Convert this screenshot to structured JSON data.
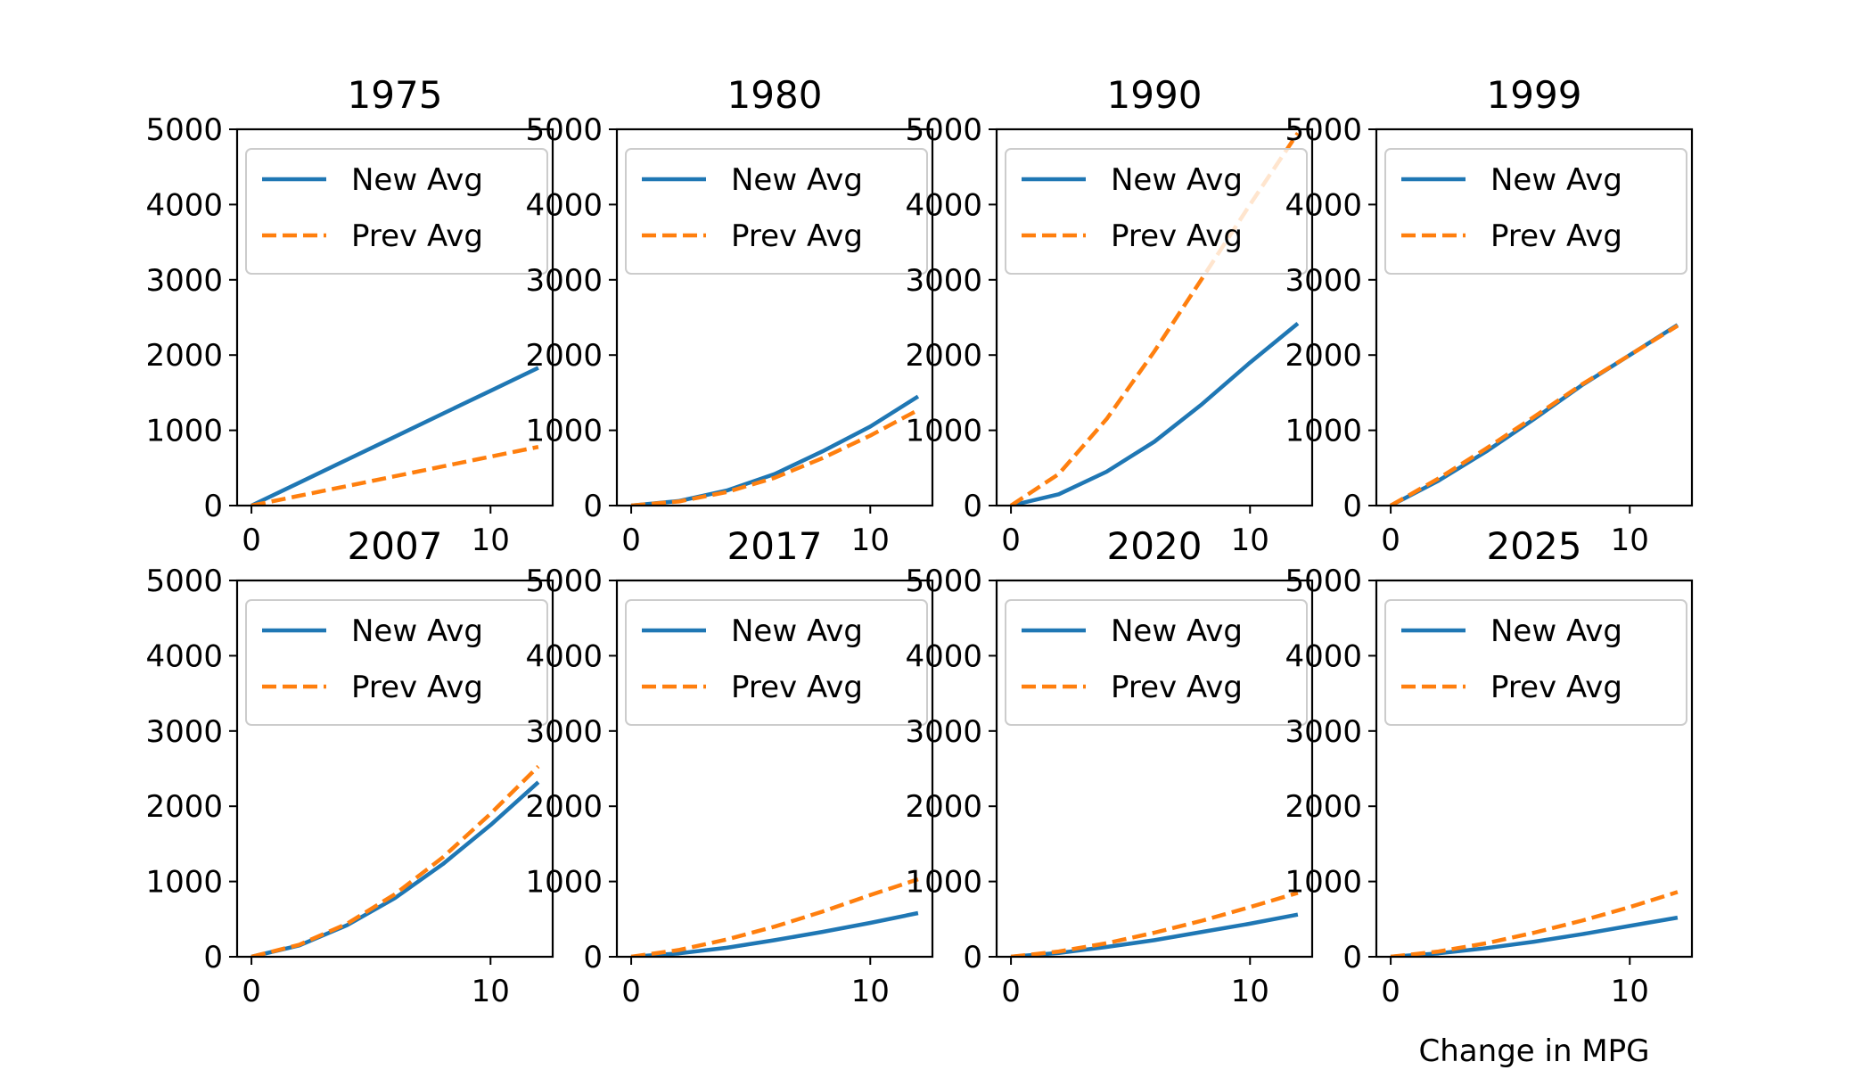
{
  "chart_data": {
    "type": "line",
    "xlabel": "Change in MPG",
    "ylabel": "",
    "xlim": [
      -0.6,
      12.6
    ],
    "ylim": [
      0,
      5000
    ],
    "xticks": [
      0,
      10
    ],
    "yticks": [
      0,
      1000,
      2000,
      3000,
      4000,
      5000
    ],
    "legend_placement": "upper-left",
    "grid": false,
    "series_styles": [
      {
        "name": "New Avg",
        "color": "#1f77b4",
        "dash": "solid"
      },
      {
        "name": "Prev Avg",
        "color": "#ff7f0e",
        "dash": "dashed"
      }
    ],
    "panels": [
      {
        "title": "1975",
        "x": [
          0,
          2,
          4,
          6,
          8,
          10,
          12
        ],
        "series": [
          {
            "name": "New Avg",
            "values": [
              0,
              305,
              610,
              915,
              1220,
              1525,
              1830
            ]
          },
          {
            "name": "Prev Avg",
            "values": [
              0,
              130,
              260,
              390,
              520,
              650,
              780
            ]
          }
        ]
      },
      {
        "title": "1980",
        "x": [
          0,
          2,
          4,
          6,
          8,
          10,
          12
        ],
        "series": [
          {
            "name": "New Avg",
            "values": [
              0,
              60,
              200,
              420,
              720,
              1050,
              1450
            ]
          },
          {
            "name": "Prev Avg",
            "values": [
              0,
              55,
              180,
              370,
              630,
              930,
              1270
            ]
          }
        ]
      },
      {
        "title": "1990",
        "x": [
          0,
          2,
          4,
          6,
          8,
          10,
          12
        ],
        "series": [
          {
            "name": "New Avg",
            "values": [
              0,
              150,
              450,
              850,
              1350,
              1900,
              2420
            ]
          },
          {
            "name": "Prev Avg",
            "values": [
              0,
              420,
              1150,
              2050,
              3020,
              4000,
              4950
            ]
          }
        ]
      },
      {
        "title": "1999",
        "x": [
          0,
          2,
          4,
          6,
          8,
          10,
          12
        ],
        "series": [
          {
            "name": "New Avg",
            "values": [
              0,
              330,
              720,
              1150,
              1600,
              2000,
              2400
            ]
          },
          {
            "name": "Prev Avg",
            "values": [
              0,
              360,
              760,
              1180,
              1610,
              2000,
              2390
            ]
          }
        ]
      },
      {
        "title": "2007",
        "x": [
          0,
          2,
          4,
          6,
          8,
          10,
          12
        ],
        "series": [
          {
            "name": "New Avg",
            "values": [
              0,
              150,
              420,
              780,
              1230,
              1750,
              2320
            ]
          },
          {
            "name": "Prev Avg",
            "values": [
              0,
              160,
              440,
              830,
              1320,
              1900,
              2530
            ]
          }
        ]
      },
      {
        "title": "2017",
        "x": [
          0,
          2,
          4,
          6,
          8,
          10,
          12
        ],
        "series": [
          {
            "name": "New Avg",
            "values": [
              0,
              45,
              120,
              220,
              330,
              450,
              580
            ]
          },
          {
            "name": "Prev Avg",
            "values": [
              0,
              90,
              230,
              400,
              600,
              820,
              1030
            ]
          }
        ]
      },
      {
        "title": "2020",
        "x": [
          0,
          2,
          4,
          6,
          8,
          10,
          12
        ],
        "series": [
          {
            "name": "New Avg",
            "values": [
              0,
              50,
              130,
              220,
              330,
              440,
              560
            ]
          },
          {
            "name": "Prev Avg",
            "values": [
              0,
              70,
              180,
              320,
              480,
              660,
              850
            ]
          }
        ]
      },
      {
        "title": "2025",
        "x": [
          0,
          2,
          4,
          6,
          8,
          10,
          12
        ],
        "series": [
          {
            "name": "New Avg",
            "values": [
              0,
              45,
              115,
              200,
              300,
              410,
              520
            ]
          },
          {
            "name": "Prev Avg",
            "values": [
              0,
              70,
              180,
              320,
              480,
              660,
              860
            ]
          }
        ]
      }
    ]
  }
}
